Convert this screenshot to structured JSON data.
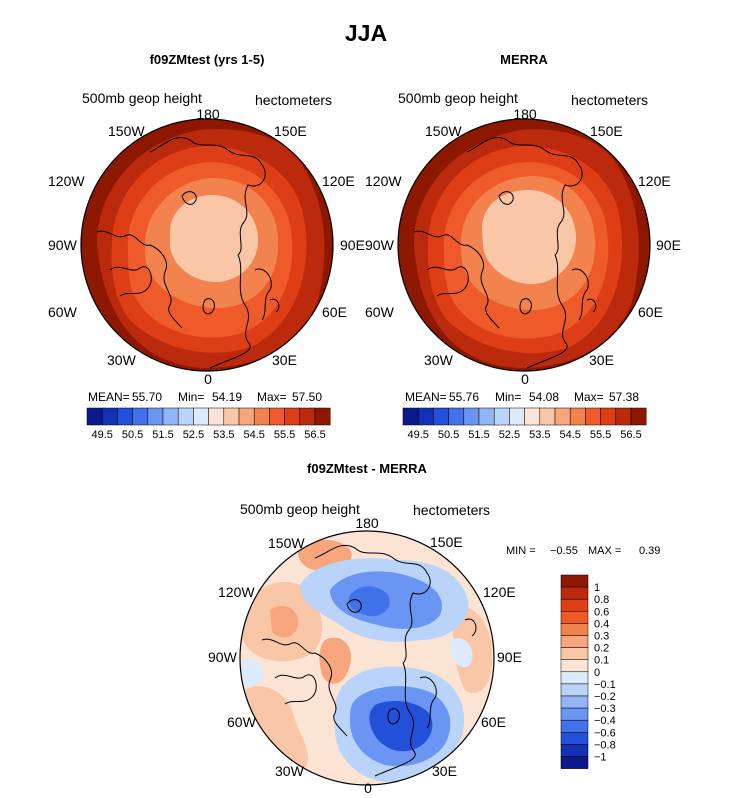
{
  "figure_title": "JJA",
  "chart_data": [
    {
      "type": "polar-contour",
      "panel": "model",
      "title": "f09ZMtest (yrs 1-5)",
      "variable": "500mb geop height",
      "units": "hectometers",
      "projection": "north-polar-stereographic",
      "lon_labels": {
        "top": "180",
        "bottom": "0",
        "left": "90W",
        "right": "90E",
        "upper_left_1": "150W",
        "upper_left_2": "120W",
        "upper_right_1": "150E",
        "upper_right_2": "120E",
        "lower_left_1": "60W",
        "lower_left_2": "30W",
        "lower_right_1": "60E",
        "lower_right_2": "30E"
      },
      "stats": {
        "mean_label": "MEAN=",
        "mean": "55.70",
        "min_label": "Min=",
        "min": "54.19",
        "max_label": "Max=",
        "max": "57.50"
      },
      "contour_levels": [
        54.0,
        54.5,
        55.0,
        55.5,
        56.0,
        56.5,
        57.0
      ],
      "colorbar": {
        "tick_labels": [
          "49.5",
          "50.5",
          "51.5",
          "52.5",
          "53.5",
          "54.5",
          "55.5",
          "56.5"
        ],
        "colors": [
          "#0a1a8c",
          "#1430b4",
          "#2350d8",
          "#4172ea",
          "#6b95f2",
          "#92b5f5",
          "#bad3f8",
          "#dcebfb",
          "#fbe4d4",
          "#f9c7a8",
          "#f6a57c",
          "#f2834f",
          "#ee5a2a",
          "#dd3e16",
          "#bb2a0c",
          "#8e1700"
        ]
      }
    },
    {
      "type": "polar-contour",
      "panel": "obs",
      "title": "MERRA",
      "variable": "500mb geop height",
      "units": "hectometers",
      "projection": "north-polar-stereographic",
      "lon_labels": {
        "top": "180",
        "bottom": "0",
        "left": "90W",
        "right": "90E",
        "upper_left_1": "150W",
        "upper_left_2": "120W",
        "upper_right_1": "150E",
        "upper_right_2": "120E",
        "lower_left_1": "60W",
        "lower_left_2": "30W",
        "lower_right_1": "60E",
        "lower_right_2": "30E"
      },
      "stats": {
        "mean_label": "MEAN=",
        "mean": "55.76",
        "min_label": "Min=",
        "min": "54.08",
        "max_label": "Max=",
        "max": "57.38"
      },
      "contour_levels": [
        54.0,
        54.5,
        55.0,
        55.5,
        56.0,
        56.5,
        57.0
      ],
      "colorbar": {
        "tick_labels": [
          "49.5",
          "50.5",
          "51.5",
          "52.5",
          "53.5",
          "54.5",
          "55.5",
          "56.5"
        ],
        "colors": [
          "#0a1a8c",
          "#1430b4",
          "#2350d8",
          "#4172ea",
          "#6b95f2",
          "#92b5f5",
          "#bad3f8",
          "#dcebfb",
          "#fbe4d4",
          "#f9c7a8",
          "#f6a57c",
          "#f2834f",
          "#ee5a2a",
          "#dd3e16",
          "#bb2a0c",
          "#8e1700"
        ]
      }
    },
    {
      "type": "polar-contour",
      "panel": "difference",
      "title": "f09ZMtest - MERRA",
      "variable": "500mb geop height",
      "units": "hectometers",
      "projection": "north-polar-stereographic",
      "lon_labels": {
        "top": "180",
        "bottom": "0",
        "left": "90W",
        "right": "90E",
        "upper_left_1": "150W",
        "upper_left_2": "120W",
        "upper_right_1": "150E",
        "upper_right_2": "120E",
        "lower_left_1": "60W",
        "lower_left_2": "30W",
        "lower_right_1": "60E",
        "lower_right_2": "30E"
      },
      "stats": {
        "min_label": "MIN =",
        "min": "−0.55",
        "max_label": "MAX =",
        "max": "0.39"
      },
      "contour_levels": [
        -1,
        -0.8,
        -0.6,
        -0.4,
        -0.3,
        -0.2,
        -0.1,
        0,
        0.1,
        0.2,
        0.3,
        0.4,
        0.6,
        0.8,
        1
      ],
      "colorbar": {
        "tick_labels": [
          "1",
          "0.8",
          "0.6",
          "0.4",
          "0.3",
          "0.2",
          "0.1",
          "0",
          "−0.1",
          "−0.2",
          "−0.3",
          "−0.4",
          "−0.6",
          "−0.8",
          "−1"
        ],
        "colors": [
          "#8e1700",
          "#bb2a0c",
          "#dd3e16",
          "#ee5a2a",
          "#f2834f",
          "#f6a57c",
          "#f9c7a8",
          "#fbe4d4",
          "#dcebfb",
          "#bad3f8",
          "#92b5f5",
          "#6b95f2",
          "#4172ea",
          "#2350d8",
          "#1430b4",
          "#0a1a8c"
        ]
      }
    }
  ]
}
